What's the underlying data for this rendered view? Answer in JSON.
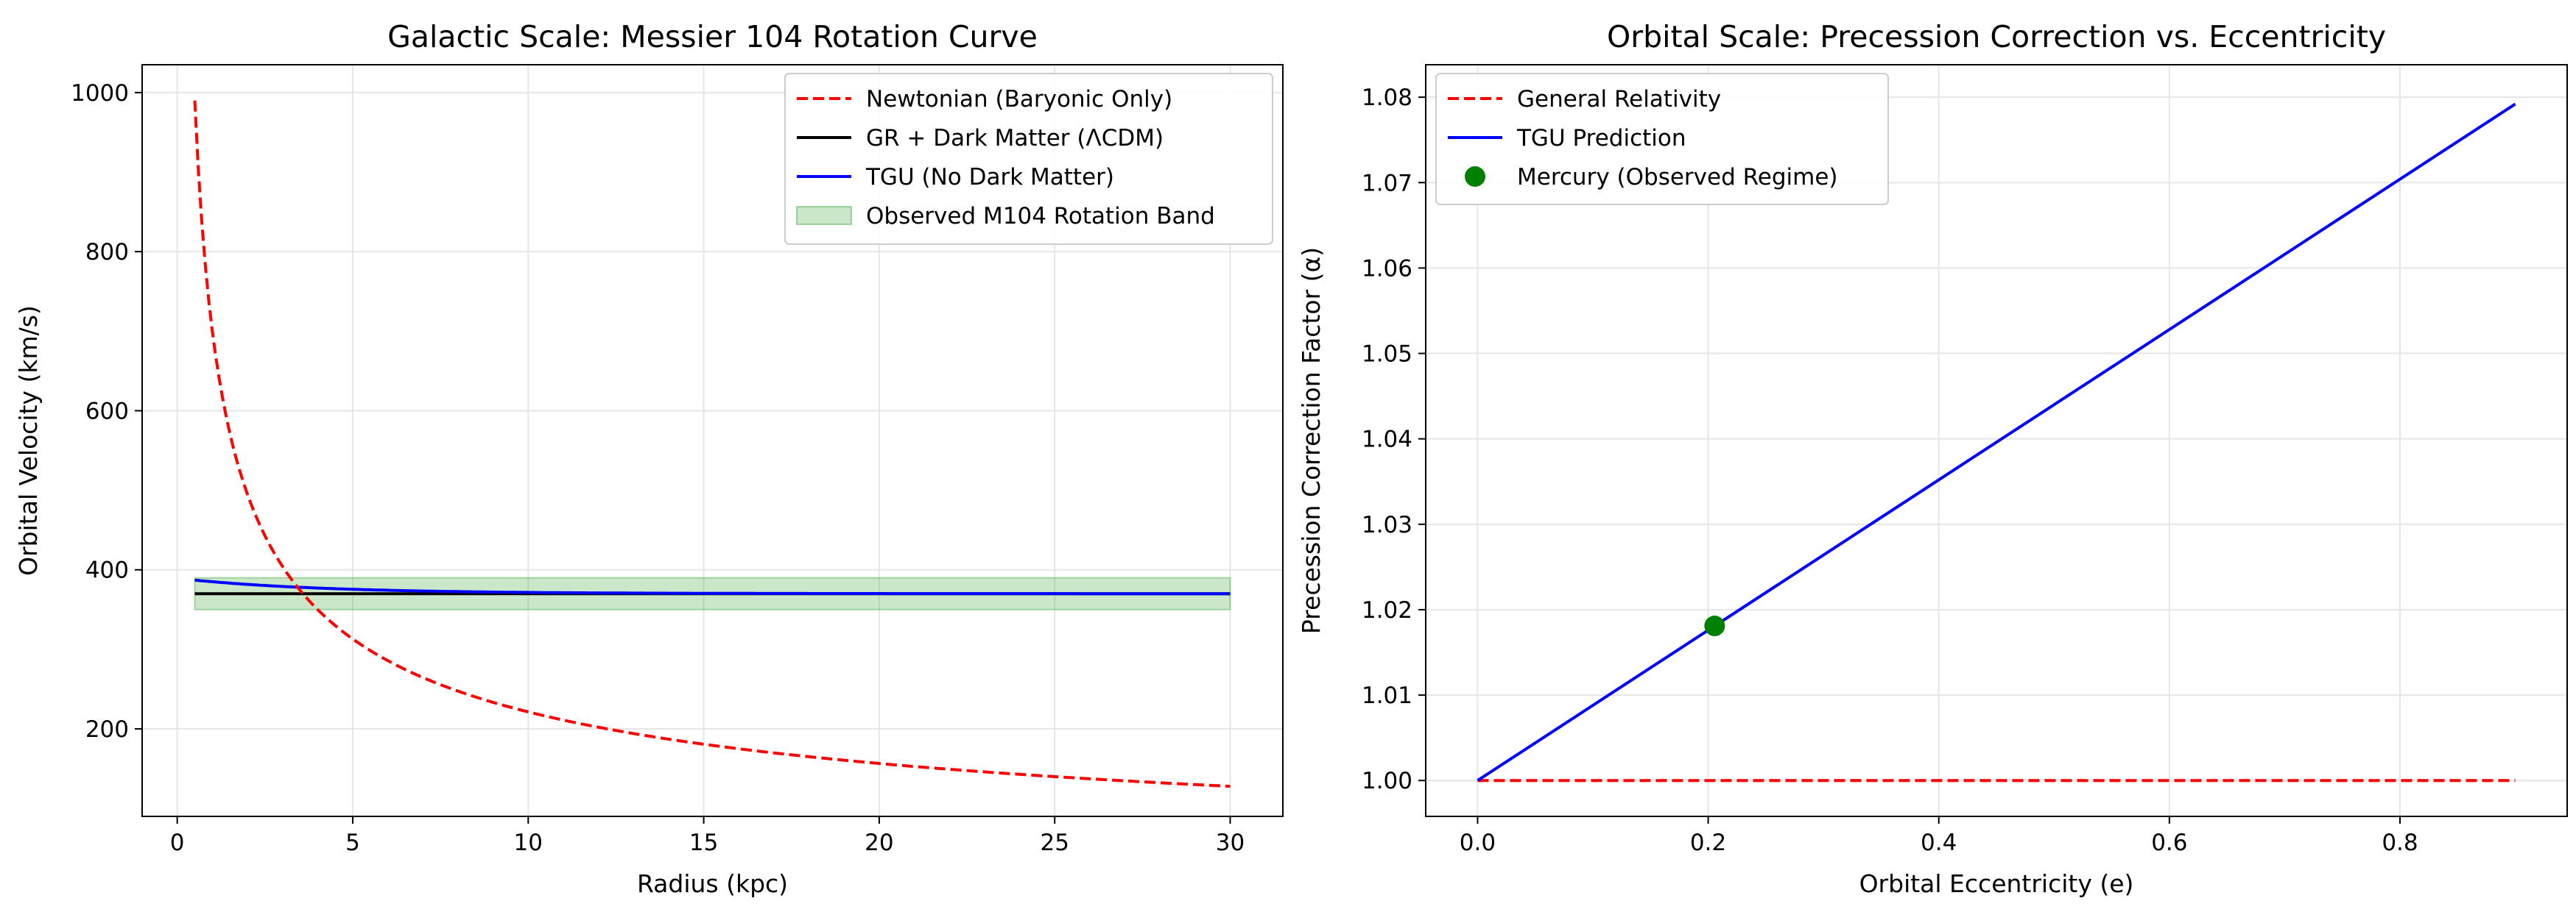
{
  "chart_data": [
    {
      "type": "line",
      "title": "Galactic Scale: Messier 104 Rotation Curve",
      "xlabel": "Radius (kpc)",
      "ylabel": "Orbital Velocity (km/s)",
      "xlim": [
        -1.0,
        31.5
      ],
      "ylim": [
        90,
        1035
      ],
      "xticks": [
        0,
        5,
        10,
        15,
        20,
        25,
        30
      ],
      "yticks": [
        200,
        400,
        600,
        800,
        1000
      ],
      "grid": true,
      "legend_position": "upper-right",
      "series": [
        {
          "name": "Newtonian (Baryonic Only)",
          "color": "#ff0000",
          "style": "dashed",
          "model": "v = 700 / sqrt(r)",
          "x_range": [
            0.5,
            30
          ],
          "values_sample": [
            [
              0.5,
              990
            ],
            [
              3.5,
              374
            ],
            [
              10,
              221
            ],
            [
              20,
              157
            ],
            [
              30,
              128
            ]
          ]
        },
        {
          "name": "GR + Dark Matter (ΛCDM)",
          "color": "#000000",
          "style": "solid",
          "model": "constant",
          "x_range": [
            0.5,
            30
          ],
          "values_sample": [
            [
              0.5,
              370
            ],
            [
              30,
              370
            ]
          ]
        },
        {
          "name": "TGU (No Dark Matter)",
          "color": "#0000ff",
          "style": "solid",
          "model": "v = 370 + 17 * exp(-(r - 0.5) / 4)",
          "x_range": [
            0.5,
            30
          ],
          "values_sample": [
            [
              0.5,
              387
            ],
            [
              5,
              376
            ],
            [
              10,
              371
            ],
            [
              30,
              370
            ]
          ]
        }
      ],
      "band": {
        "name": "Observed M104 Rotation Band",
        "color": "#2ca02c",
        "x_range": [
          0.5,
          30
        ],
        "y_range": [
          350,
          390
        ]
      }
    },
    {
      "type": "line",
      "title": "Orbital Scale: Precession Correction vs. Eccentricity",
      "xlabel": "Orbital Eccentricity (e)",
      "ylabel": "Precession Correction Factor (α)",
      "xlim": [
        -0.045,
        0.945
      ],
      "ylim": [
        0.9958,
        1.0838
      ],
      "xticks": [
        "0.0",
        "0.2",
        "0.4",
        "0.6",
        "0.8"
      ],
      "yticks": [
        "1.00",
        "1.01",
        "1.02",
        "1.03",
        "1.04",
        "1.05",
        "1.06",
        "1.07",
        "1.08"
      ],
      "grid": true,
      "legend_position": "upper-left",
      "series": [
        {
          "name": "General Relativity",
          "color": "#ff0000",
          "style": "dashed",
          "x": [
            0.0,
            0.9
          ],
          "y": [
            1.0,
            1.0
          ]
        },
        {
          "name": "TGU Prediction",
          "color": "#0000ff",
          "style": "solid",
          "x": [
            0.0,
            0.9
          ],
          "y": [
            1.0,
            1.0792
          ]
        }
      ],
      "points": [
        {
          "name": "Mercury (Observed Regime)",
          "color": "#008000",
          "x": 0.2056,
          "y": 1.0181
        }
      ]
    }
  ]
}
